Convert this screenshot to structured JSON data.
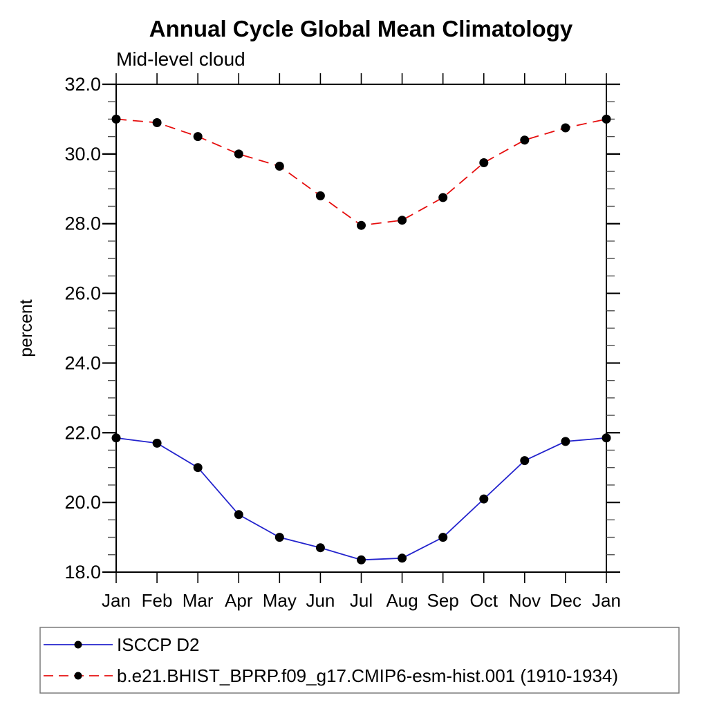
{
  "page": {
    "background": "#ffffff"
  },
  "chart_data": {
    "type": "line",
    "title": "Annual Cycle Global Mean Climatology",
    "subtitle": "Mid-level cloud",
    "xlabel": "",
    "ylabel": "percent",
    "x_categories": [
      "Jan",
      "Feb",
      "Mar",
      "Apr",
      "May",
      "Jun",
      "Jul",
      "Aug",
      "Sep",
      "Oct",
      "Nov",
      "Dec",
      "Jan"
    ],
    "ylim": [
      18.0,
      32.0
    ],
    "ytick_values": [
      18,
      20,
      22,
      24,
      26,
      28,
      30,
      32
    ],
    "ytick_labels": [
      "18.0",
      "20.0",
      "22.0",
      "24.0",
      "26.0",
      "28.0",
      "30.0",
      "32.0"
    ],
    "ytick_minor_step": 0.5,
    "grid": false,
    "marker": {
      "shape": "filled-circle",
      "color": "#000000",
      "radius": 6.5
    },
    "axis_color": "#000000",
    "series": [
      {
        "name": "ISCCP D2",
        "color": "#2323cd",
        "line_style": "solid",
        "values": [
          21.85,
          21.7,
          21.0,
          19.65,
          19.0,
          18.7,
          18.35,
          18.4,
          19.0,
          20.1,
          21.2,
          21.75,
          21.85
        ]
      },
      {
        "name": "b.e21.BHIST_BPRP.f09_g17.CMIP6-esm-hist.001 (1910-1934)",
        "color": "#e60f0f",
        "line_style": "dashed",
        "values": [
          31.0,
          30.9,
          30.5,
          30.0,
          29.65,
          28.8,
          27.95,
          28.1,
          28.75,
          29.75,
          30.4,
          30.75,
          31.0
        ]
      }
    ],
    "legend": {
      "position": "bottom-left",
      "border_color": "#7a7a7a"
    }
  }
}
